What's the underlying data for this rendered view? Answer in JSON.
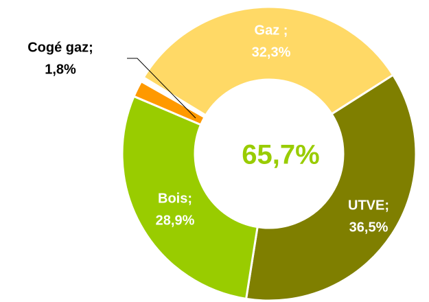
{
  "chart_data": {
    "type": "donut",
    "categories": [
      "Gaz ;",
      "UTVE;",
      "Bois;",
      "Cogé gaz;"
    ],
    "values": [
      32.3,
      36.5,
      28.9,
      1.8
    ],
    "value_labels": [
      "32,3%",
      "36,5%",
      "28,9%",
      "1,8%"
    ],
    "colors": [
      "#ffd966",
      "#7f7f00",
      "#99cc00",
      "#ff9900"
    ],
    "center_label": "65,7%"
  }
}
